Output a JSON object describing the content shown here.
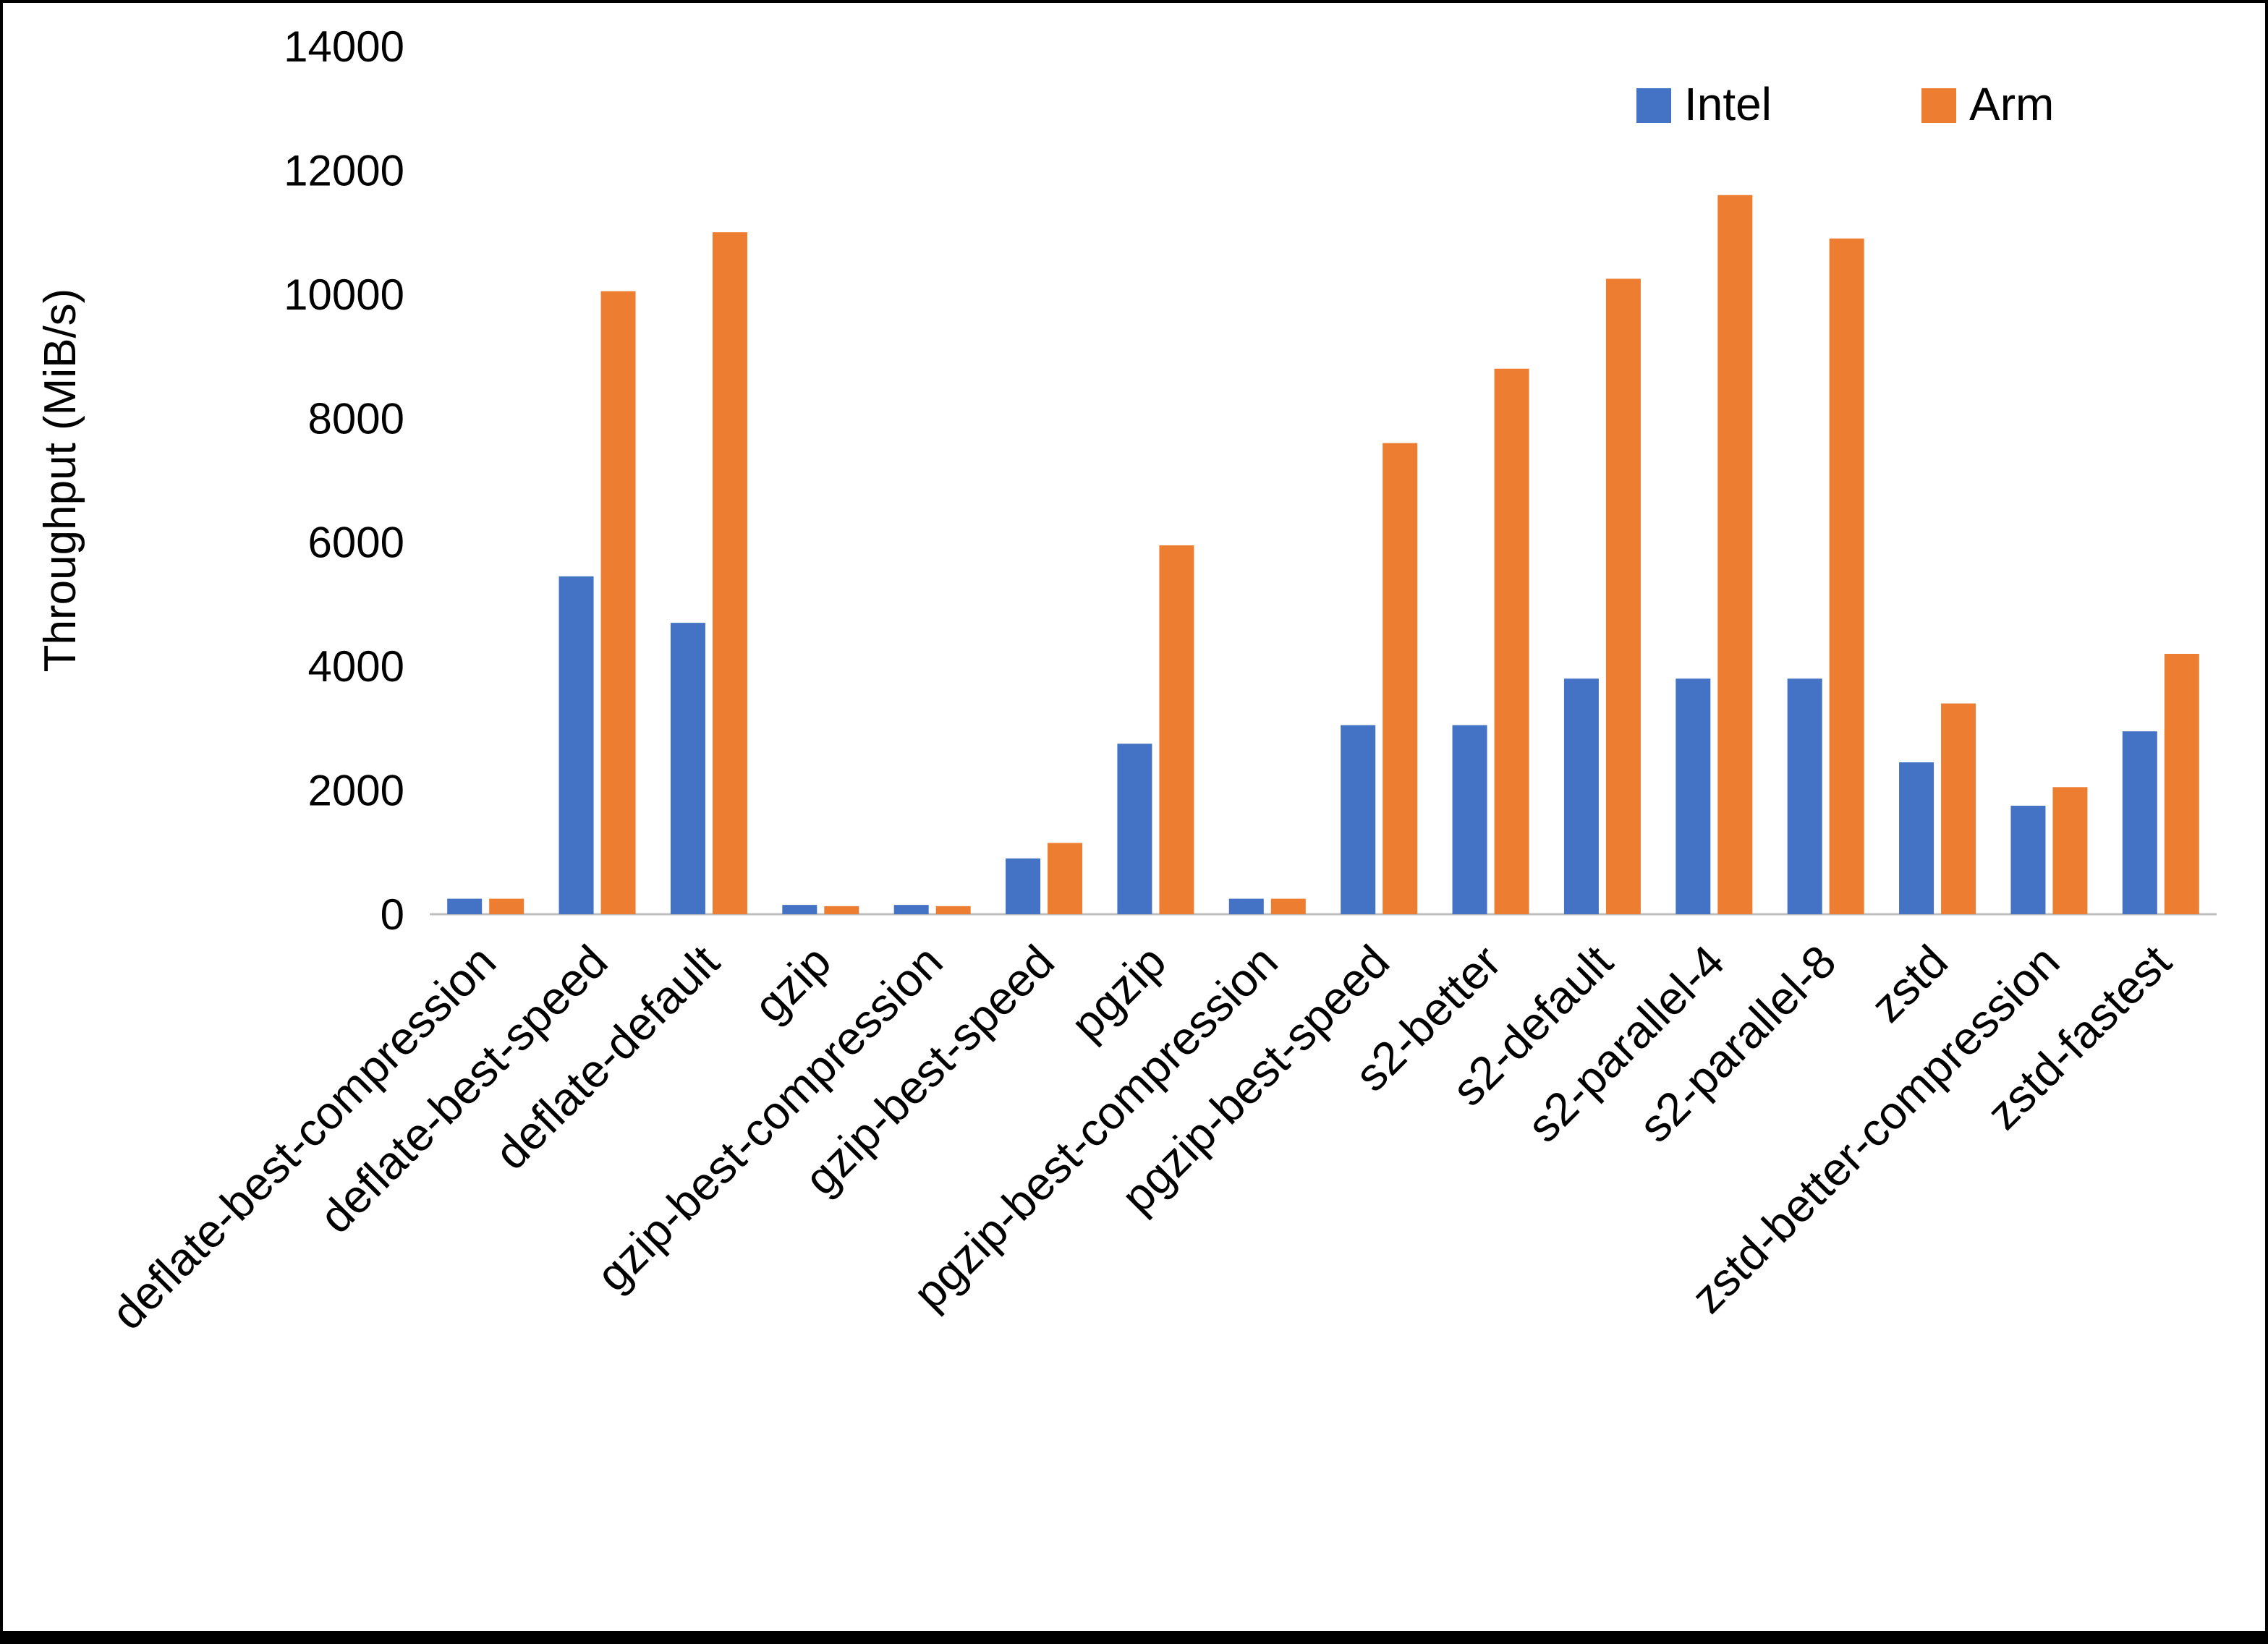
{
  "chart_data": {
    "type": "bar",
    "title": "",
    "ylabel": "Throughput (MiB/s)",
    "xlabel": "",
    "ylim": [
      0,
      14000
    ],
    "yticks": [
      0,
      2000,
      4000,
      6000,
      8000,
      10000,
      12000,
      14000
    ],
    "grid": false,
    "legend_position": "top-right",
    "categories": [
      "deflate-best-compression",
      "deflate-best-speed",
      "deflate-default",
      "gzip",
      "gzip-best-compression",
      "gzip-best-speed",
      "pgzip",
      "pgzip-best-compression",
      "pgzip-best-speed",
      "s2-better",
      "s2-default",
      "s2-parallel-4",
      "s2-parallel-8",
      "zstd",
      "zstd-better-compression",
      "zstd-fastest"
    ],
    "series": [
      {
        "name": "Intel",
        "color": "#4472C4",
        "values": [
          250,
          5450,
          4700,
          150,
          150,
          900,
          2750,
          250,
          3050,
          3050,
          3800,
          3800,
          3800,
          2450,
          1750,
          2950
        ]
      },
      {
        "name": "Arm",
        "color": "#ED7D31",
        "values": [
          250,
          10050,
          11000,
          130,
          130,
          1150,
          5950,
          250,
          7600,
          8800,
          10250,
          11600,
          10900,
          3400,
          2050,
          4200
        ]
      }
    ]
  },
  "colors": {
    "background": "#ffffff",
    "text": "#000000",
    "axis_line": "#bfbfbf",
    "frame": "#000000"
  }
}
